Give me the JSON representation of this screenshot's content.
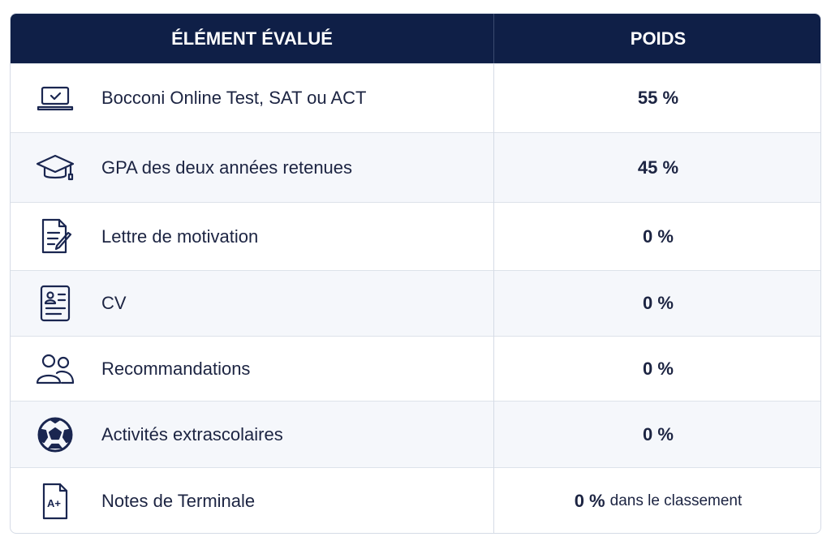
{
  "header": {
    "element": "ÉLÉMENT ÉVALUÉ",
    "weight": "POIDS"
  },
  "rows": [
    {
      "label": "Bocconi Online Test, SAT ou ACT",
      "weight": "55 %"
    },
    {
      "label": "GPA des deux années retenues",
      "weight": "45 %"
    },
    {
      "label": "Lettre de motivation",
      "weight": "0 %"
    },
    {
      "label": "CV",
      "weight": "0 %"
    },
    {
      "label": "Recommandations",
      "weight": "0 %"
    },
    {
      "label": "Activités extrascolaires",
      "weight": "0 %"
    },
    {
      "label": "Notes de Terminale",
      "weight": "0 %",
      "note": "dans le classement",
      "icon_text": "A+"
    }
  ]
}
